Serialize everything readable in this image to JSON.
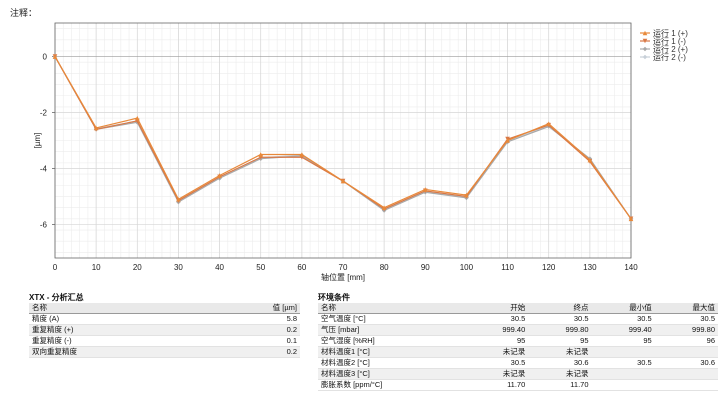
{
  "top_note": "注释：",
  "chart_data": {
    "type": "line",
    "xlabel": "轴位置 [mm]",
    "ylabel": "[µm]",
    "xlim": [
      0,
      140
    ],
    "ylim": [
      -7.2,
      1.2
    ],
    "x_ticks": [
      0,
      10,
      20,
      30,
      40,
      50,
      60,
      70,
      80,
      90,
      100,
      110,
      120,
      130,
      140
    ],
    "y_ticks": [
      0,
      -2,
      -4,
      -6
    ],
    "grid": true,
    "legend_position": "top-right",
    "x": [
      0,
      10,
      20,
      30,
      40,
      50,
      60,
      70,
      80,
      90,
      100,
      110,
      120,
      130,
      140
    ],
    "series": [
      {
        "name": "运行 1 (+)",
        "color": "#e8893a",
        "marker": "triangle-up",
        "values": [
          0.0,
          -2.55,
          -2.2,
          -5.1,
          -4.25,
          -3.5,
          -3.5,
          -4.45,
          -5.4,
          -4.75,
          -4.95,
          -3.0,
          -2.4,
          -3.7,
          -5.8
        ]
      },
      {
        "name": "运行 1 (-)",
        "color": "#d97845",
        "marker": "triangle-down",
        "values": [
          0.0,
          -2.6,
          -2.3,
          -5.15,
          -4.3,
          -3.6,
          -3.6,
          -4.45,
          -5.45,
          -4.8,
          -5.0,
          -2.95,
          -2.45,
          -3.75,
          -5.8
        ]
      },
      {
        "name": "运行 2 (+)",
        "color": "#a9a9a9",
        "marker": "diamond",
        "values": [
          0.0,
          -2.6,
          -2.35,
          -5.2,
          -4.35,
          -3.65,
          -3.55,
          -4.45,
          -5.5,
          -4.85,
          -5.05,
          -3.05,
          -2.5,
          -3.65,
          -5.8
        ]
      },
      {
        "name": "运行 2 (-)",
        "color": "#c8d0d8",
        "marker": "diamond",
        "values": [
          0.0,
          -2.58,
          -2.3,
          -5.18,
          -4.32,
          -3.62,
          -3.52,
          -4.45,
          -5.48,
          -4.82,
          -5.02,
          -3.02,
          -2.48,
          -3.68,
          -5.8
        ]
      }
    ]
  },
  "summary": {
    "title": "XTX - 分析汇总",
    "headers": [
      "名称",
      "值 [µm]"
    ],
    "rows": [
      [
        "精度 (A)",
        "5.8"
      ],
      [
        "重复精度 (+)",
        "0.2"
      ],
      [
        "重复精度 (-)",
        "0.1"
      ],
      [
        "双向重复精度",
        "0.2"
      ]
    ]
  },
  "environment": {
    "title": "环境条件",
    "headers": [
      "名称",
      "开始",
      "终点",
      "最小值",
      "最大值"
    ],
    "rows": [
      [
        "空气温度 [°C]",
        "30.5",
        "30.5",
        "30.5",
        "30.5"
      ],
      [
        "气压 [mbar]",
        "999.40",
        "999.80",
        "999.40",
        "999.80"
      ],
      [
        "空气湿度 [%RH]",
        "95",
        "95",
        "95",
        "96"
      ],
      [
        "材料温度1 [°C]",
        "未记录",
        "未记录",
        "",
        ""
      ],
      [
        "材料温度2 [°C]",
        "30.5",
        "30.6",
        "30.5",
        "30.6"
      ],
      [
        "材料温度3 [°C]",
        "未记录",
        "未记录",
        "",
        ""
      ],
      [
        "膨胀系数 [ppm/°C]",
        "11.70",
        "11.70",
        "",
        ""
      ]
    ]
  }
}
